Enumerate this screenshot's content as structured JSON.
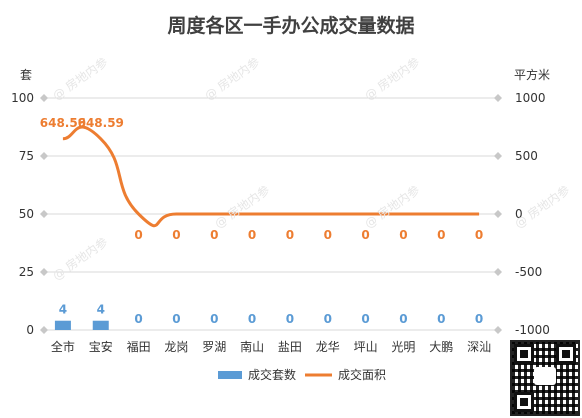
{
  "chart_data": {
    "type": "bar+line",
    "title": "周度各区一手办公成交量数据",
    "left_unit": "套",
    "right_unit": "平方米",
    "categories": [
      "全市",
      "宝安",
      "福田",
      "龙岗",
      "罗湖",
      "南山",
      "盐田",
      "龙华",
      "坪山",
      "光明",
      "大鹏",
      "深汕"
    ],
    "left_axis": {
      "min": 0,
      "max": 100,
      "ticks": [
        0,
        25,
        50,
        75,
        100
      ]
    },
    "right_axis": {
      "min": -1000,
      "max": 1000,
      "ticks": [
        -1000,
        -500,
        0,
        500,
        1000
      ]
    },
    "series": [
      {
        "name": "成交套数",
        "type": "bar",
        "axis": "left",
        "values": [
          4,
          4,
          0,
          0,
          0,
          0,
          0,
          0,
          0,
          0,
          0,
          0
        ],
        "labels": [
          "4",
          "4",
          "0",
          "0",
          "0",
          "0",
          "0",
          "0",
          "0",
          "0",
          "0",
          "0"
        ],
        "color": "#5b9bd5"
      },
      {
        "name": "成交面积",
        "type": "line",
        "axis": "right",
        "values": [
          648.59,
          648.59,
          0,
          0,
          0,
          0,
          0,
          0,
          0,
          0,
          0,
          0
        ],
        "labels": [
          "648.59",
          "648.59",
          "0",
          "0",
          "0",
          "0",
          "0",
          "0",
          "0",
          "0",
          "0",
          "0"
        ],
        "color": "#ed7d31"
      }
    ],
    "grid": true,
    "legend_position": "bottom"
  },
  "watermark": "@ 房地内参",
  "colors": {
    "grid": "#d9d9d9",
    "axis_text": "#333333",
    "title": "#404040"
  }
}
